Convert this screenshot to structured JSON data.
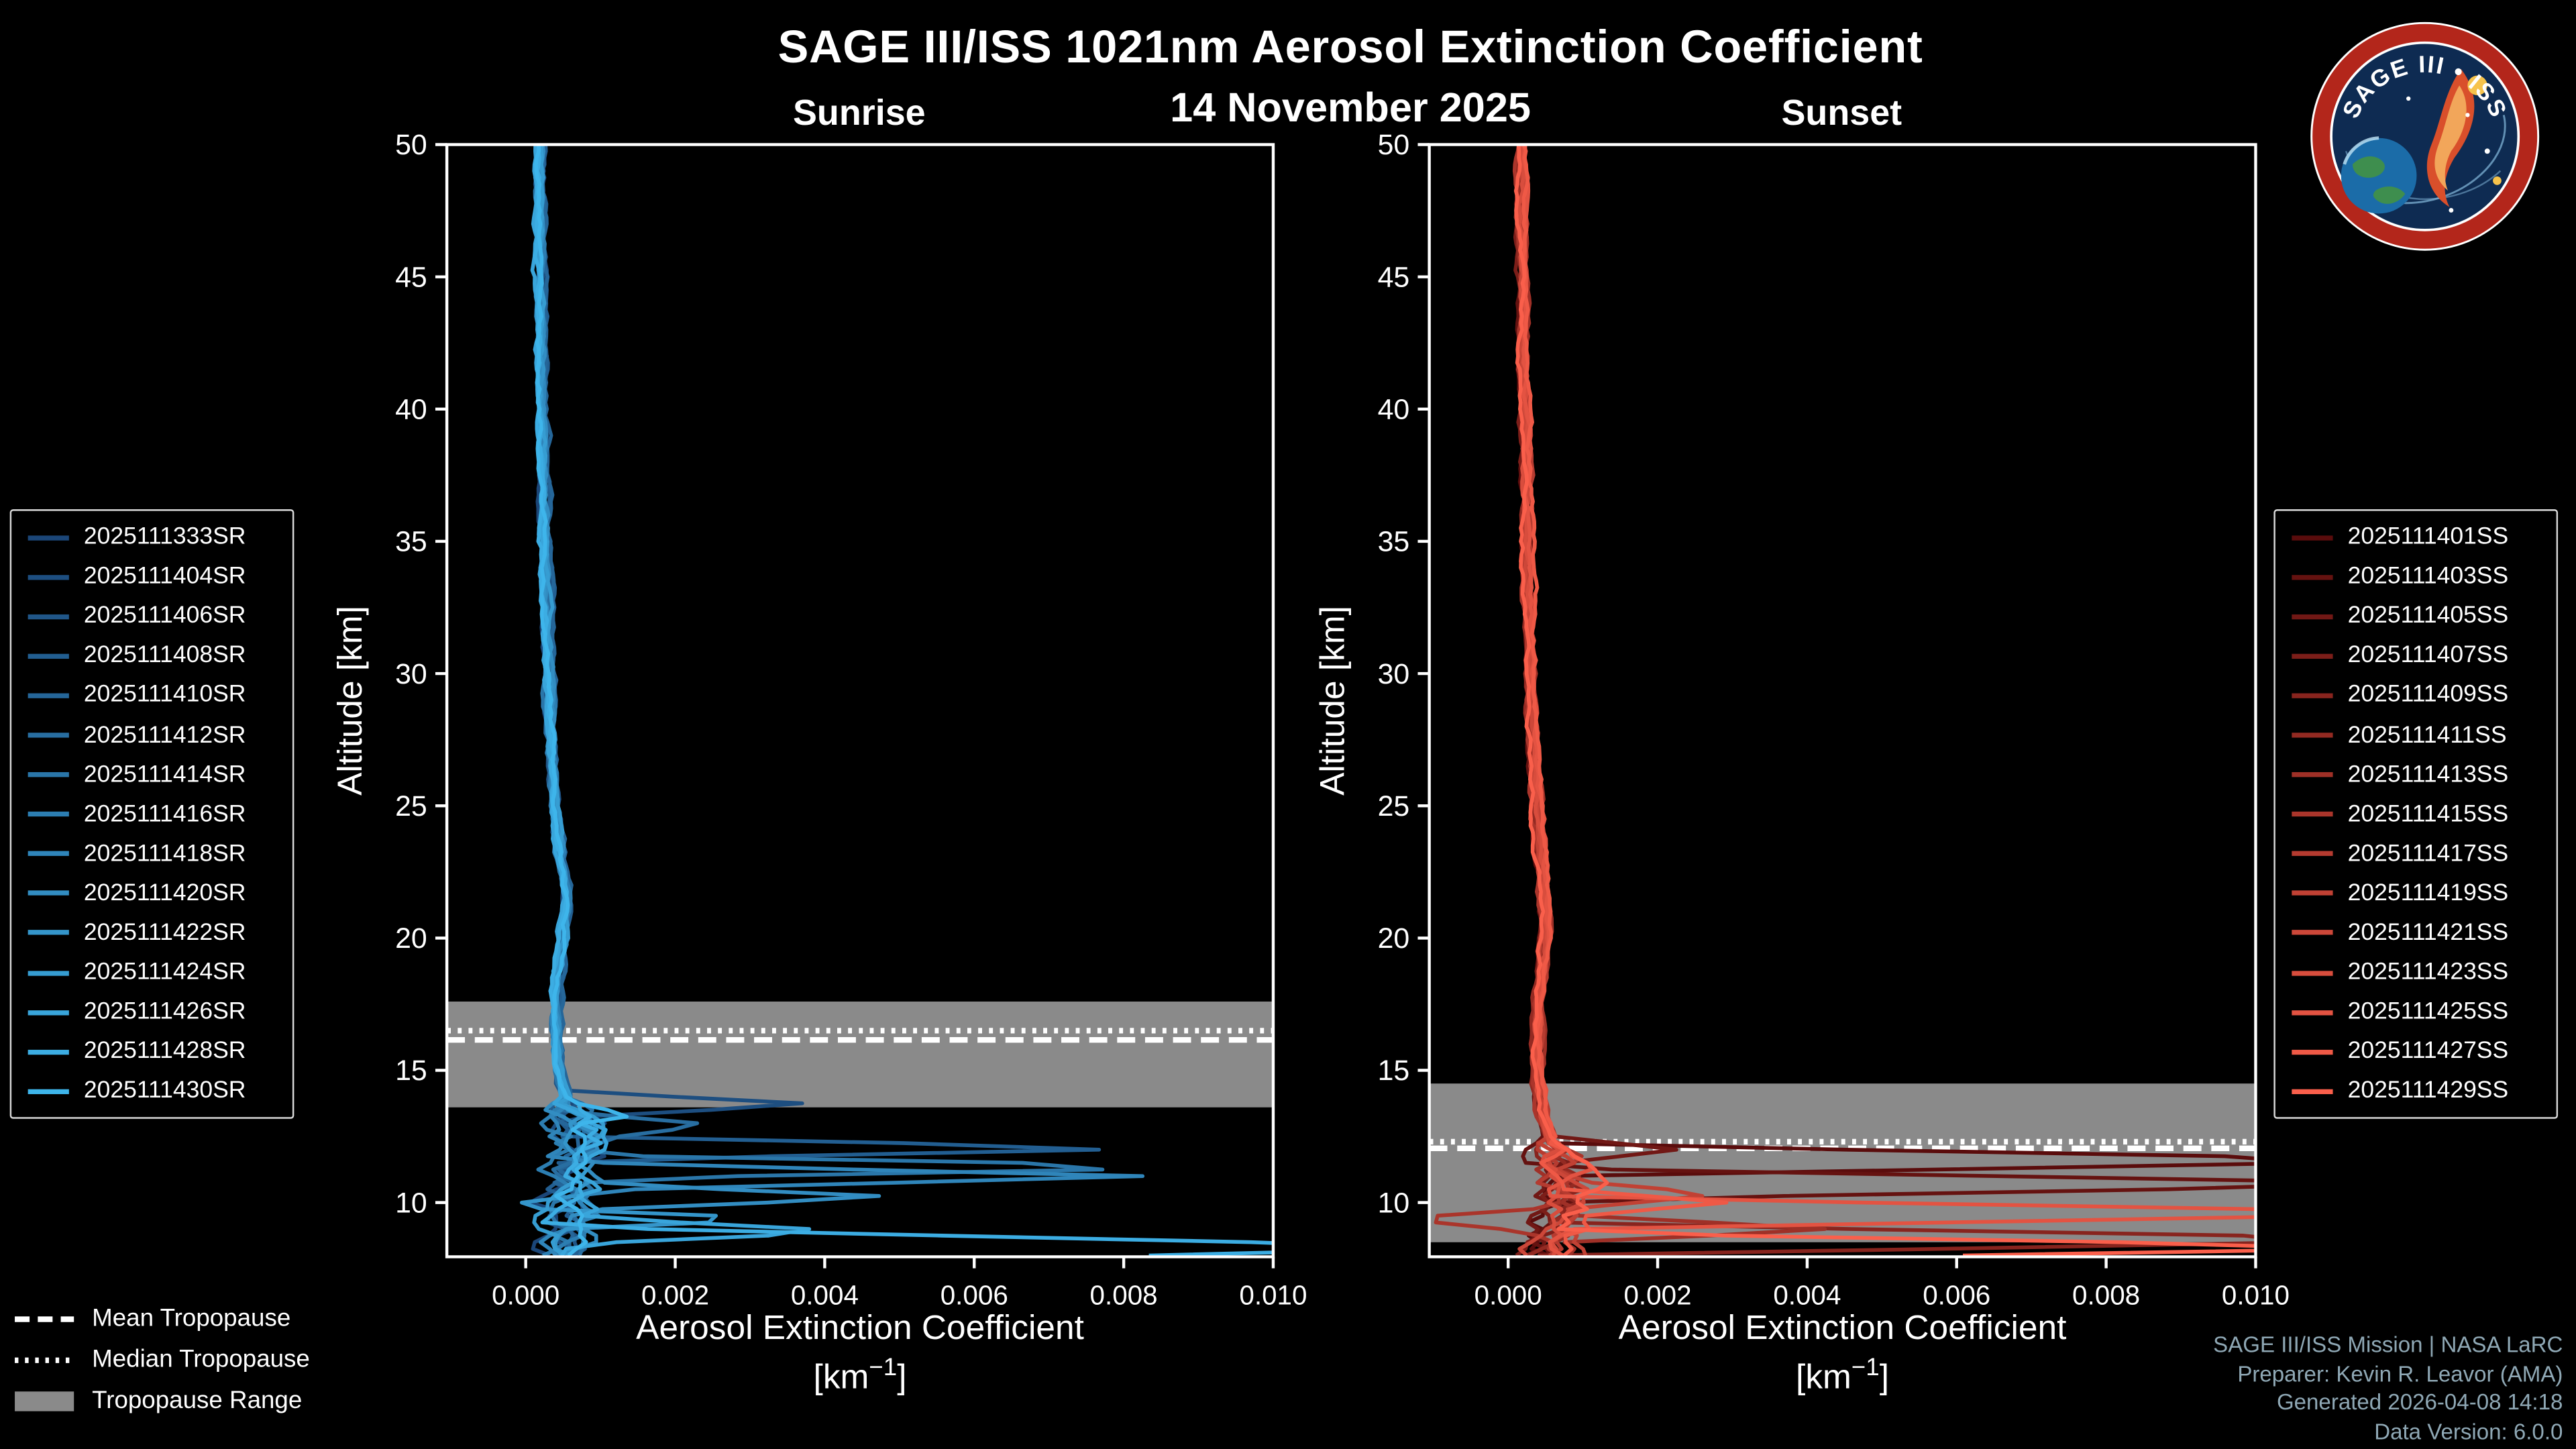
{
  "chart_data": {
    "type": "line",
    "title": "SAGE III/ISS 1021nm Aerosol Extinction Coefficient",
    "subtitle": "14 November 2025",
    "unit_pre": "[km",
    "unit_sup": "−1",
    "unit_post": "]",
    "legend_position": "outside-left-and-right",
    "grid": false,
    "panels": [
      {
        "id": "sunrise",
        "title": "Sunrise",
        "xlabel": "Aerosol Extinction Coefficient",
        "ylabel": "Altitude [km]",
        "xlim": [
          -0.001055,
          0.01
        ],
        "ylim": [
          7.95,
          50
        ],
        "x_ticks": [
          {
            "v": 0.0,
            "label": "0.000"
          },
          {
            "v": 0.002,
            "label": "0.002"
          },
          {
            "v": 0.004,
            "label": "0.004"
          },
          {
            "v": 0.006,
            "label": "0.006"
          },
          {
            "v": 0.008,
            "label": "0.008"
          },
          {
            "v": 0.01,
            "label": "0.010"
          }
        ],
        "y_ticks": [
          {
            "v": 10,
            "label": "10"
          },
          {
            "v": 15,
            "label": "15"
          },
          {
            "v": 20,
            "label": "20"
          },
          {
            "v": 25,
            "label": "25"
          },
          {
            "v": 30,
            "label": "30"
          },
          {
            "v": 35,
            "label": "35"
          },
          {
            "v": 40,
            "label": "40"
          },
          {
            "v": 45,
            "label": "45"
          },
          {
            "v": 50,
            "label": "50"
          }
        ],
        "tropopause": {
          "range_km": [
            13.6,
            17.6
          ],
          "mean_km": 16.15,
          "median_km": 16.5,
          "band_color": "#8a8a8a",
          "line_color": "#ffffff"
        },
        "rough_below_km": 14.0,
        "baseline": [
          [
            50,
            0.0002
          ],
          [
            45,
            0.00021
          ],
          [
            40,
            0.00023
          ],
          [
            35,
            0.00027
          ],
          [
            30,
            0.00032
          ],
          [
            27,
            0.00036
          ],
          [
            25,
            0.0004
          ],
          [
            23,
            0.00047
          ],
          [
            21.5,
            0.00055
          ],
          [
            20,
            0.00052
          ],
          [
            18.5,
            0.00044
          ],
          [
            17,
            0.0004
          ],
          [
            15.5,
            0.00042
          ],
          [
            14.5,
            0.00048
          ],
          [
            13.5,
            0.0006
          ],
          [
            12.5,
            0.00075
          ],
          [
            11.5,
            0.0007
          ],
          [
            10.5,
            0.0006
          ],
          [
            9.5,
            0.00055
          ],
          [
            8,
            0.0005
          ]
        ],
        "series": [
          {
            "name": "2025111333SR",
            "color": "#1B4678",
            "deviations": []
          },
          {
            "name": "2025111404SR",
            "color": "#1D4E80",
            "deviations": [
              [
                13.7,
                0.0042,
                0.5
              ]
            ]
          },
          {
            "name": "2025111406SR",
            "color": "#205688",
            "deviations": []
          },
          {
            "name": "2025111408SR",
            "color": "#225E91",
            "deviations": [
              [
                12.05,
                0.0088,
                0.45
              ]
            ]
          },
          {
            "name": "2025111410SR",
            "color": "#256699",
            "deviations": []
          },
          {
            "name": "2025111412SR",
            "color": "#286EA1",
            "deviations": [
              [
                12.9,
                0.0026,
                0.5
              ]
            ]
          },
          {
            "name": "2025111414SR",
            "color": "#2A76A9",
            "deviations": [
              [
                11.35,
                0.0095,
                0.45
              ]
            ]
          },
          {
            "name": "2025111416SR",
            "color": "#2C7EB2",
            "deviations": []
          },
          {
            "name": "2025111418SR",
            "color": "#2F85BA",
            "deviations": [
              [
                11.0,
                0.0085,
                0.55
              ]
            ]
          },
          {
            "name": "2025111420SR",
            "color": "#328DC2",
            "deviations": [
              [
                10.2,
                0.0047,
                0.5
              ]
            ]
          },
          {
            "name": "2025111422SR",
            "color": "#3495CA",
            "deviations": [
              [
                9.7,
                -0.0011,
                0.45
              ],
              [
                9.45,
                0.0035,
                0.45
              ]
            ]
          },
          {
            "name": "2025111424SR",
            "color": "#369DD2",
            "deviations": []
          },
          {
            "name": "2025111426SR",
            "color": "#39A5DB",
            "deviations": [
              [
                8.9,
                0.0045,
                0.5
              ]
            ]
          },
          {
            "name": "2025111428SR",
            "color": "#3CADE3",
            "deviations": [
              [
                8.3,
                0.013,
                0.8
              ]
            ]
          },
          {
            "name": "2025111430SR",
            "color": "#3EB5EB",
            "deviations": [
              [
                13.3,
                0.0016,
                0.5
              ]
            ]
          }
        ]
      },
      {
        "id": "sunset",
        "title": "Sunset",
        "xlabel": "Aerosol Extinction Coefficient",
        "ylabel": "Altitude [km]",
        "xlim": [
          -0.001055,
          0.01
        ],
        "ylim": [
          7.95,
          50
        ],
        "x_ticks": [
          {
            "v": 0.0,
            "label": "0.000"
          },
          {
            "v": 0.002,
            "label": "0.002"
          },
          {
            "v": 0.004,
            "label": "0.004"
          },
          {
            "v": 0.006,
            "label": "0.006"
          },
          {
            "v": 0.008,
            "label": "0.008"
          },
          {
            "v": 0.01,
            "label": "0.010"
          }
        ],
        "y_ticks": [
          {
            "v": 10,
            "label": "10"
          },
          {
            "v": 15,
            "label": "15"
          },
          {
            "v": 20,
            "label": "20"
          },
          {
            "v": 25,
            "label": "25"
          },
          {
            "v": 30,
            "label": "30"
          },
          {
            "v": 35,
            "label": "35"
          },
          {
            "v": 40,
            "label": "40"
          },
          {
            "v": 45,
            "label": "45"
          },
          {
            "v": 50,
            "label": "50"
          }
        ],
        "tropopause": {
          "range_km": [
            8.5,
            14.5
          ],
          "mean_km": 12.05,
          "median_km": 12.3,
          "band_color": "#8a8a8a",
          "line_color": "#ffffff"
        },
        "rough_below_km": 12.3,
        "baseline": [
          [
            50,
            0.00018
          ],
          [
            45,
            0.0002
          ],
          [
            40,
            0.00022
          ],
          [
            35,
            0.00026
          ],
          [
            30,
            0.0003
          ],
          [
            27,
            0.00034
          ],
          [
            25,
            0.00038
          ],
          [
            23,
            0.00044
          ],
          [
            21,
            0.0005
          ],
          [
            19.5,
            0.00048
          ],
          [
            18,
            0.00042
          ],
          [
            16,
            0.00038
          ],
          [
            14.5,
            0.0004
          ],
          [
            13.5,
            0.00045
          ],
          [
            12.5,
            0.00055
          ],
          [
            11.5,
            0.00065
          ],
          [
            10.5,
            0.0007
          ],
          [
            9.5,
            0.00065
          ],
          [
            8,
            0.00055
          ]
        ],
        "series": [
          {
            "name": "2025111401SS",
            "color": "#5A0C0C",
            "deviations": [
              [
                11.6,
                0.013,
                0.6
              ]
            ]
          },
          {
            "name": "2025111403SS",
            "color": "#651210",
            "deviations": [
              [
                10.7,
                0.013,
                0.6
              ]
            ]
          },
          {
            "name": "2025111405SS",
            "color": "#711815",
            "deviations": [
              [
                12.0,
                0.0022,
                0.5
              ]
            ]
          },
          {
            "name": "2025111407SS",
            "color": "#7C1E19",
            "deviations": []
          },
          {
            "name": "2025111409SS",
            "color": "#88241E",
            "deviations": [
              [
                8.6,
                0.013,
                0.6
              ]
            ]
          },
          {
            "name": "2025111411SS",
            "color": "#932A22",
            "deviations": []
          },
          {
            "name": "2025111413SS",
            "color": "#9F3027",
            "deviations": [
              [
                9.0,
                0.004,
                0.5
              ]
            ]
          },
          {
            "name": "2025111415SS",
            "color": "#AA352B",
            "deviations": [
              [
                9.35,
                -0.0013,
                0.45
              ]
            ]
          },
          {
            "name": "2025111417SS",
            "color": "#B53B30",
            "deviations": []
          },
          {
            "name": "2025111419SS",
            "color": "#C14134",
            "deviations": [
              [
                10.3,
                0.0025,
                0.5
              ]
            ]
          },
          {
            "name": "2025111421SS",
            "color": "#CC4739",
            "deviations": []
          },
          {
            "name": "2025111423SS",
            "color": "#D84D3D",
            "deviations": []
          },
          {
            "name": "2025111425SS",
            "color": "#E35342",
            "deviations": [
              [
                9.6,
                0.013,
                0.6
              ]
            ]
          },
          {
            "name": "2025111427SS",
            "color": "#EF5946",
            "deviations": [
              [
                10.0,
                0.0028,
                0.5
              ]
            ]
          },
          {
            "name": "2025111429SS",
            "color": "#FA5F4B",
            "deviations": [
              [
                8.3,
                0.012,
                0.55
              ]
            ]
          }
        ]
      }
    ]
  },
  "tropopause_legend": {
    "mean": "Mean Tropopause",
    "median": "Median Tropopause",
    "range": "Tropopause Range"
  },
  "attribution": {
    "line1": "SAGE III/ISS Mission | NASA LaRC",
    "line2": "Preparer: Kevin R. Leavor (AMA)",
    "line3": "Generated 2026-04-08 14:18",
    "line4": "Data Version: 6.0.0"
  },
  "logo": {
    "text": "SAGE III • ISS"
  }
}
